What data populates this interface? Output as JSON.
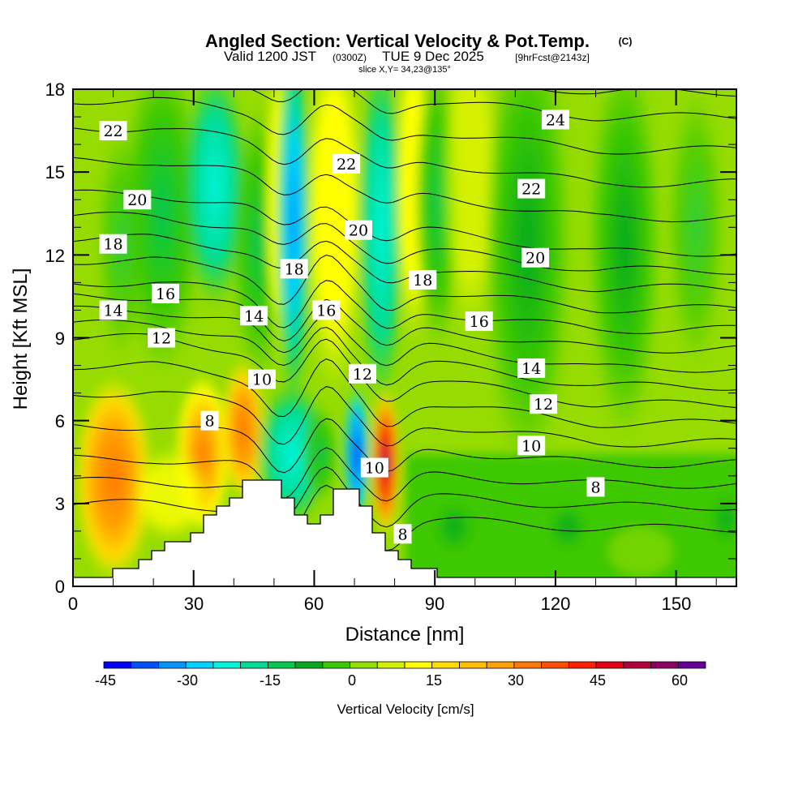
{
  "header": {
    "title": "Angled Section: Vertical Velocity & Pot.Temp.",
    "copyright": "(C)",
    "valid_prefix": "Valid 1200 JST",
    "utc": "(0300Z)",
    "valid_date": "TUE 9 Dec 2025",
    "forecast": "[9hrFcst@2143z]",
    "slice": "slice X,Y= 34,23@135°"
  },
  "chart_data": {
    "type": "heatmap",
    "title": "Angled Section: Vertical Velocity & Pot.Temp.",
    "xlabel": "Distance [nm]",
    "ylabel": "Height [Kft MSL]",
    "xlim": [
      0,
      165
    ],
    "ylim": [
      0,
      18
    ],
    "xticks": [
      "0",
      "30",
      "60",
      "90",
      "120",
      "150"
    ],
    "yticks": [
      "0",
      "3",
      "6",
      "9",
      "12",
      "15",
      "18"
    ],
    "colorbar": {
      "label": "Vertical Velocity [cm/s]",
      "range": [
        -45,
        65
      ],
      "step": 5,
      "tick_labels": [
        "-45",
        "-30",
        "-15",
        "0",
        "15",
        "30",
        "45",
        "60"
      ],
      "colors": [
        "#0000ff",
        "#0050ff",
        "#0096ff",
        "#00d2ff",
        "#00f5dc",
        "#00dc96",
        "#00c850",
        "#00aa1e",
        "#3cc800",
        "#96dc00",
        "#d2f000",
        "#ffff00",
        "#ffdc00",
        "#ffbe00",
        "#ffa000",
        "#ff7800",
        "#ff5000",
        "#ff2000",
        "#e60014",
        "#b4003c",
        "#8c0064",
        "#640096"
      ]
    },
    "features": [
      {
        "name": "updraft",
        "x_nm": 10,
        "height_kft": 4,
        "value": 35
      },
      {
        "name": "updraft",
        "x_nm": 33,
        "height_kft": 5,
        "value": 30
      },
      {
        "name": "updraft",
        "x_nm": 42,
        "height_kft": 6,
        "value": 30
      },
      {
        "name": "downdraft",
        "x_nm": 70,
        "height_kft": 4.5,
        "value": -45
      },
      {
        "name": "updraft",
        "x_nm": 78,
        "height_kft": 4.5,
        "value": 65
      },
      {
        "name": "downdraft",
        "x_nm": 55,
        "height_kft": 15,
        "value": -35
      }
    ],
    "contour_field": "Potential Temperature",
    "contour_labels": [
      {
        "text": "22",
        "x_nm": 10,
        "height_kft": 16.5
      },
      {
        "text": "20",
        "x_nm": 16,
        "height_kft": 14
      },
      {
        "text": "18",
        "x_nm": 10,
        "height_kft": 12.4
      },
      {
        "text": "16",
        "x_nm": 23,
        "height_kft": 10.6
      },
      {
        "text": "14",
        "x_nm": 10,
        "height_kft": 10
      },
      {
        "text": "12",
        "x_nm": 22,
        "height_kft": 9
      },
      {
        "text": "22",
        "x_nm": 68,
        "height_kft": 15.3
      },
      {
        "text": "20",
        "x_nm": 71,
        "height_kft": 12.9
      },
      {
        "text": "18",
        "x_nm": 55,
        "height_kft": 11.5
      },
      {
        "text": "16",
        "x_nm": 63,
        "height_kft": 10
      },
      {
        "text": "14",
        "x_nm": 45,
        "height_kft": 9.8
      },
      {
        "text": "10",
        "x_nm": 47,
        "height_kft": 7.5
      },
      {
        "text": "8",
        "x_nm": 34,
        "height_kft": 6
      },
      {
        "text": "12",
        "x_nm": 72,
        "height_kft": 7.7
      },
      {
        "text": "10",
        "x_nm": 75,
        "height_kft": 4.3
      },
      {
        "text": "8",
        "x_nm": 82,
        "height_kft": 1.9
      },
      {
        "text": "18",
        "x_nm": 87,
        "height_kft": 11.1
      },
      {
        "text": "16",
        "x_nm": 101,
        "height_kft": 9.6
      },
      {
        "text": "24",
        "x_nm": 120,
        "height_kft": 16.9
      },
      {
        "text": "22",
        "x_nm": 114,
        "height_kft": 14.4
      },
      {
        "text": "20",
        "x_nm": 115,
        "height_kft": 11.9
      },
      {
        "text": "14",
        "x_nm": 114,
        "height_kft": 7.9
      },
      {
        "text": "12",
        "x_nm": 117,
        "height_kft": 6.6
      },
      {
        "text": "10",
        "x_nm": 114,
        "height_kft": 5.1
      },
      {
        "text": "8",
        "x_nm": 130,
        "height_kft": 3.6
      }
    ]
  }
}
